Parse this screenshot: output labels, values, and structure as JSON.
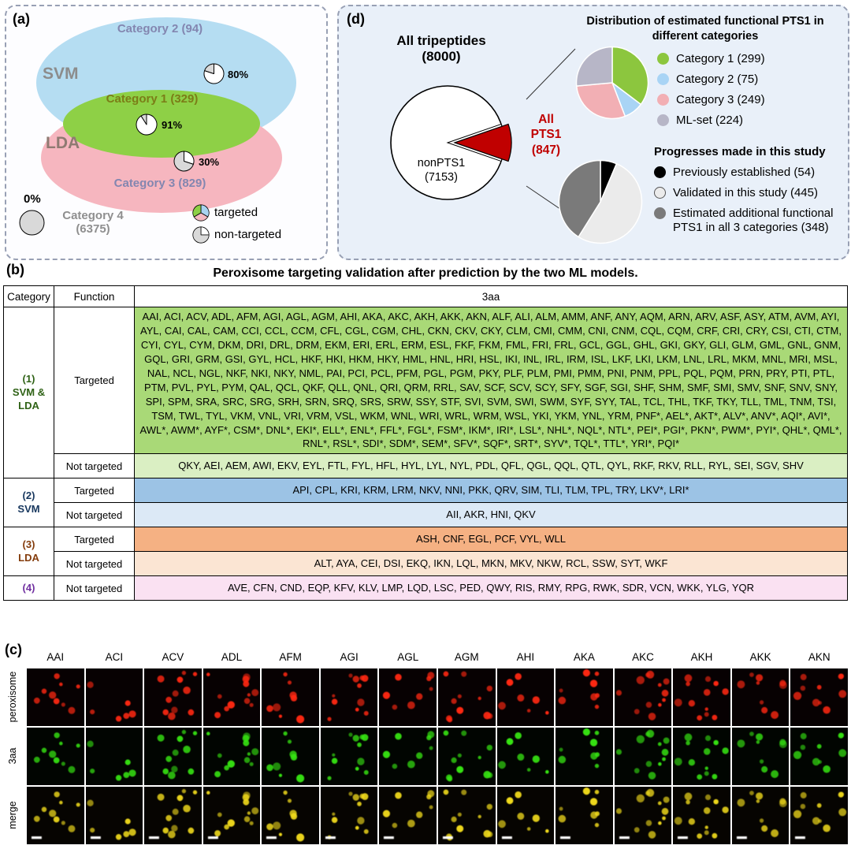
{
  "panel_a": {
    "label": "(a)",
    "svm": "SVM",
    "lda": "LDA",
    "cat1": "Category 1 (329)",
    "cat2": "Category 2 (94)",
    "cat3": "Category 3 (829)",
    "cat4_line1": "Category 4",
    "cat4_line2": "(6375)",
    "pct80": "80%",
    "pct91": "91%",
    "pct30": "30%",
    "pct0": "0%",
    "legend_targeted": "targeted",
    "legend_non_targeted": "non-targeted",
    "pies": {
      "cat2": {
        "stroke": "#000000",
        "sw": 1,
        "slices": [
          {
            "v": 80,
            "color": "#ffffff"
          },
          {
            "v": 20,
            "color": "#d9d9d9"
          }
        ]
      },
      "cat1": {
        "stroke": "#000000",
        "sw": 1,
        "slices": [
          {
            "v": 91,
            "color": "#ffffff"
          },
          {
            "v": 9,
            "color": "#d9d9d9"
          }
        ]
      },
      "cat3": {
        "stroke": "#000000",
        "sw": 1,
        "slices": [
          {
            "v": 30,
            "color": "#ffffff"
          },
          {
            "v": 70,
            "color": "#d9d9d9"
          }
        ]
      },
      "cat4": {
        "stroke": "#000000",
        "sw": 1,
        "slices": [
          {
            "v": 100,
            "color": "#d9d9d9"
          }
        ]
      },
      "targeted_icon": {
        "stroke": "#000000",
        "sw": 0.8,
        "slices": [
          {
            "v": 1,
            "color": "#a8d3f0"
          },
          {
            "v": 1,
            "color": "#f4b8c0"
          },
          {
            "v": 1,
            "color": "#8ed046"
          }
        ]
      },
      "non_targeted_icon": {
        "stroke": "#000000",
        "sw": 0.8,
        "slices": [
          {
            "v": 25,
            "color": "#ffffff"
          },
          {
            "v": 75,
            "color": "#d9d9d9"
          }
        ]
      }
    }
  },
  "panel_d": {
    "label": "(d)",
    "all_trip_line1": "All tripeptides",
    "all_trip_line2": "(8000)",
    "nonpts1_line1": "nonPTS1",
    "nonpts1_line2": "(7153)",
    "allpts1_lines": [
      "All",
      "PTS1",
      "(847)"
    ],
    "big_pie": {
      "total": 8000,
      "pts1": 847,
      "pts1_color": "#c00000",
      "nonpts1_color": "#ffffff"
    },
    "dist_title": "Distribution of estimated functional PTS1 in different categories",
    "dist_pie": {
      "stroke": "#ffffff",
      "sw": 1.5,
      "slices": [
        {
          "v": 299,
          "color": "#8cc63e"
        },
        {
          "v": 75,
          "color": "#a9d4f5"
        },
        {
          "v": 249,
          "color": "#f2afb4"
        },
        {
          "v": 224,
          "color": "#b7b6c7"
        }
      ]
    },
    "dist_legend": [
      {
        "label": "Category 1 (299)",
        "color": "#8cc63e"
      },
      {
        "label": "Category 2 (75)",
        "color": "#a9d4f5"
      },
      {
        "label": "Category 3 (249)",
        "color": "#f2afb4"
      },
      {
        "label": "ML-set (224)",
        "color": "#b7b6c7"
      }
    ],
    "progress_title": "Progresses made in this study",
    "progress_pie": {
      "stroke": "#ffffff",
      "sw": 1.5,
      "slices": [
        {
          "v": 54,
          "color": "#000000"
        },
        {
          "v": 445,
          "color": "#ebebeb"
        },
        {
          "v": 348,
          "color": "#7a7a7a"
        }
      ]
    },
    "progress_legend": [
      {
        "label": "Previously established (54)",
        "color": "#000000"
      },
      {
        "label": "Validated in this study (445)",
        "color": "#ebebeb"
      },
      {
        "label": "Estimated additional functional PTS1 in all 3 categories (348)",
        "color": "#7a7a7a"
      }
    ]
  },
  "panel_b": {
    "label": "(b)",
    "title": "Peroxisome targeting validation after prediction by the two ML models.",
    "headers": [
      "Category",
      "Function",
      "3aa"
    ],
    "rows": [
      {
        "category": "(1)\nSVM &\nLDA",
        "cat_color": "#2f6216",
        "function": "Targeted",
        "bg": "#a9d977",
        "aa": "AAI, ACI, ACV, ADL, AFM, AGI, AGL, AGM, AHI, AKA, AKC, AKH, AKK, AKN, ALF, ALI, ALM, AMM, ANF, ANY, AQM, ARN, ARV, ASF, ASY, ATM, AVM, AYI, AYL, CAI, CAL, CAM, CCI, CCL, CCM, CFL, CGL, CGM, CHL, CKN, CKV, CKY, CLM, CMI, CMM, CNI, CNM, CQL, CQM, CRF, CRI, CRY, CSI, CTI, CTM, CYI, CYL, CYM, DKM, DRI, DRL, DRM, EKM, ERI, ERL, ERM, ESL, FKF, FKM, FML, FRI, FRL, GCL, GGL, GHL, GKI, GKY, GLI, GLM, GML, GNL, GNM, GQL, GRI, GRM, GSI, GYL, HCL, HKF, HKI, HKM, HKY, HML, HNL, HRI, HSL, IKI, INL, IRL, IRM, ISL, LKF, LKI, LKM, LNL, LRL, MKM, MNL, MRI, MSL, NAL, NCL, NGL, NKF, NKI, NKY, NML, PAI, PCI, PCL, PFM, PGL, PGM, PKY, PLF, PLM, PMI, PMM, PNI, PNM, PPL, PQL, PQM, PRN, PRY, PTI, PTL, PTM, PVL, PYL, PYM, QAL, QCL, QKF, QLL, QNL, QRI, QRM, RRL, SAV, SCF, SCV, SCY, SFY, SGF, SGI, SHF, SHM, SMF, SMI, SMV, SNF, SNV, SNY, SPI, SPM, SRA, SRC, SRG, SRH, SRN, SRQ, SRS, SRW, SSY, STF, SVI, SVM, SWI, SWM, SYF, SYY, TAL, TCL, THL, TKF, TKY, TLL, TML, TNM, TSI, TSM, TWL, TYL, VKM, VNL, VRI, VRM, VSL, WKM, WNL, WRI, WRL, WRM, WSL, YKI, YKM, YNL, YRM, PNF*, AEL*, AKT*, ALV*, ANV*, AQI*, AVI*, AWL*, AWM*, AYF*, CSM*, DNL*, EKI*, ELL*, ENL*, FFL*, FGL*, FSM*, IKM*, IRI*, LSL*, NHL*, NQL*, NTL*, PEI*, PGI*, PKN*, PWM*, PYI*, QHL*, QML*, RNL*, RSL*, SDI*, SDM*, SEM*, SFV*, SQF*, SRT*, SYV*, TQL*, TTL*, YRI*, PQI*"
      },
      {
        "function": "Not targeted",
        "bg": "#daefc3",
        "aa": "QKY, AEI, AEM, AWI, EKV, EYL, FTL, FYL, HFL, HYL, LYL, NYL, PDL, QFL, QGL, QQL, QTL, QYL, RKF, RKV, RLL, RYL, SEI, SGV, SHV"
      },
      {
        "category": "(2)\nSVM",
        "cat_color": "#17375e",
        "function": "Targeted",
        "bg": "#9cc3e5",
        "aa": "API, CPL, KRI, KRM, LRM, NKV, NNI, PKK, QRV, SIM, TLI, TLM, TPL, TRY, LKV*, LRI*"
      },
      {
        "function": "Not targeted",
        "bg": "#dce9f6",
        "aa": "AII, AKR, HNI, QKV"
      },
      {
        "category": "(3)\nLDA",
        "cat_color": "#843c0c",
        "function": "Targeted",
        "bg": "#f5b183",
        "aa": "ASH, CNF, EGL, PCF, VYL, WLL"
      },
      {
        "function": "Not targeted",
        "bg": "#fbe5d3",
        "aa": "ALT, AYA, CEI, DSI, EKQ, IKN, LQL, MKN, MKV, NKW, RCL, SSW, SYT, WKF"
      },
      {
        "category": "(4)",
        "cat_color": "#7030a0",
        "function": "Not targeted",
        "bg": "#fae1f2",
        "aa": "AVE, CFN, CND, EQP, KFV, KLV, LMP, LQD, LSC, PED, QWY, RIS, RMY, RPG, RWK, SDR, VCN, WKK, YLG, YQR"
      }
    ]
  },
  "panel_c": {
    "label": "(c)",
    "columns": [
      "AAI",
      "ACI",
      "ACV",
      "ADL",
      "AFM",
      "AGI",
      "AGL",
      "AGM",
      "AHI",
      "AKA",
      "AKC",
      "AKH",
      "AKK",
      "AKN"
    ],
    "rows": [
      "peroxisome",
      "3aa",
      "merge"
    ],
    "dot_colors": [
      "#ff2812",
      "#36e312",
      "#efd91c"
    ]
  }
}
